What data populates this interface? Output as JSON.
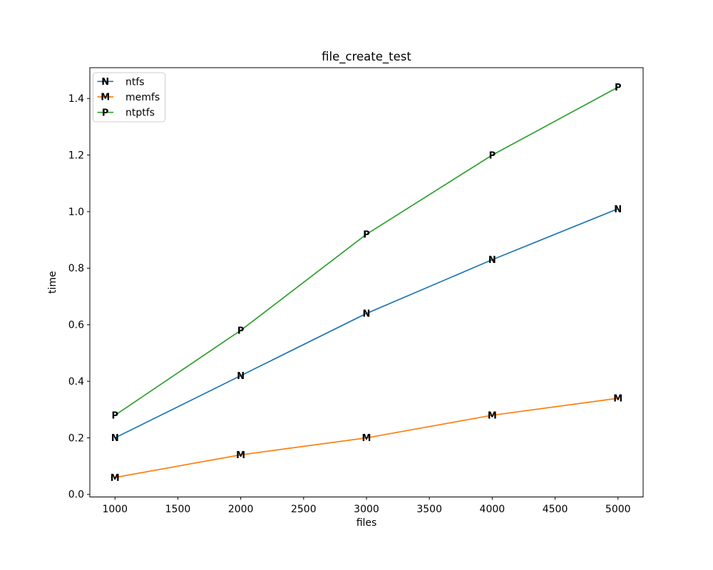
{
  "chart_data": {
    "type": "line",
    "title": "file_create_test",
    "xlabel": "files",
    "ylabel": "time",
    "x": [
      1000,
      2000,
      3000,
      4000,
      5000
    ],
    "series": [
      {
        "name": "ntfs",
        "color": "#1f77b4",
        "marker": "N",
        "values": [
          0.2,
          0.42,
          0.64,
          0.83,
          1.01
        ]
      },
      {
        "name": "memfs",
        "color": "#ff7f0e",
        "marker": "M",
        "values": [
          0.06,
          0.14,
          0.2,
          0.28,
          0.34
        ]
      },
      {
        "name": "ntptfs",
        "color": "#2ca02c",
        "marker": "P",
        "values": [
          0.28,
          0.58,
          0.92,
          1.2,
          1.44
        ]
      }
    ],
    "xticks": [
      1000,
      1500,
      2000,
      2500,
      3000,
      3500,
      4000,
      4500,
      5000
    ],
    "yticks": [
      0.0,
      0.2,
      0.4,
      0.6,
      0.8,
      1.0,
      1.2,
      1.4
    ],
    "xlim": [
      800,
      5200
    ],
    "ylim": [
      -0.009,
      1.509
    ],
    "grid": false,
    "legend_position": "upper left",
    "colors": {
      "background": "#ffffff",
      "axis": "#000000",
      "legend_border": "#cccccc",
      "legend_background": "#ffffff"
    }
  }
}
